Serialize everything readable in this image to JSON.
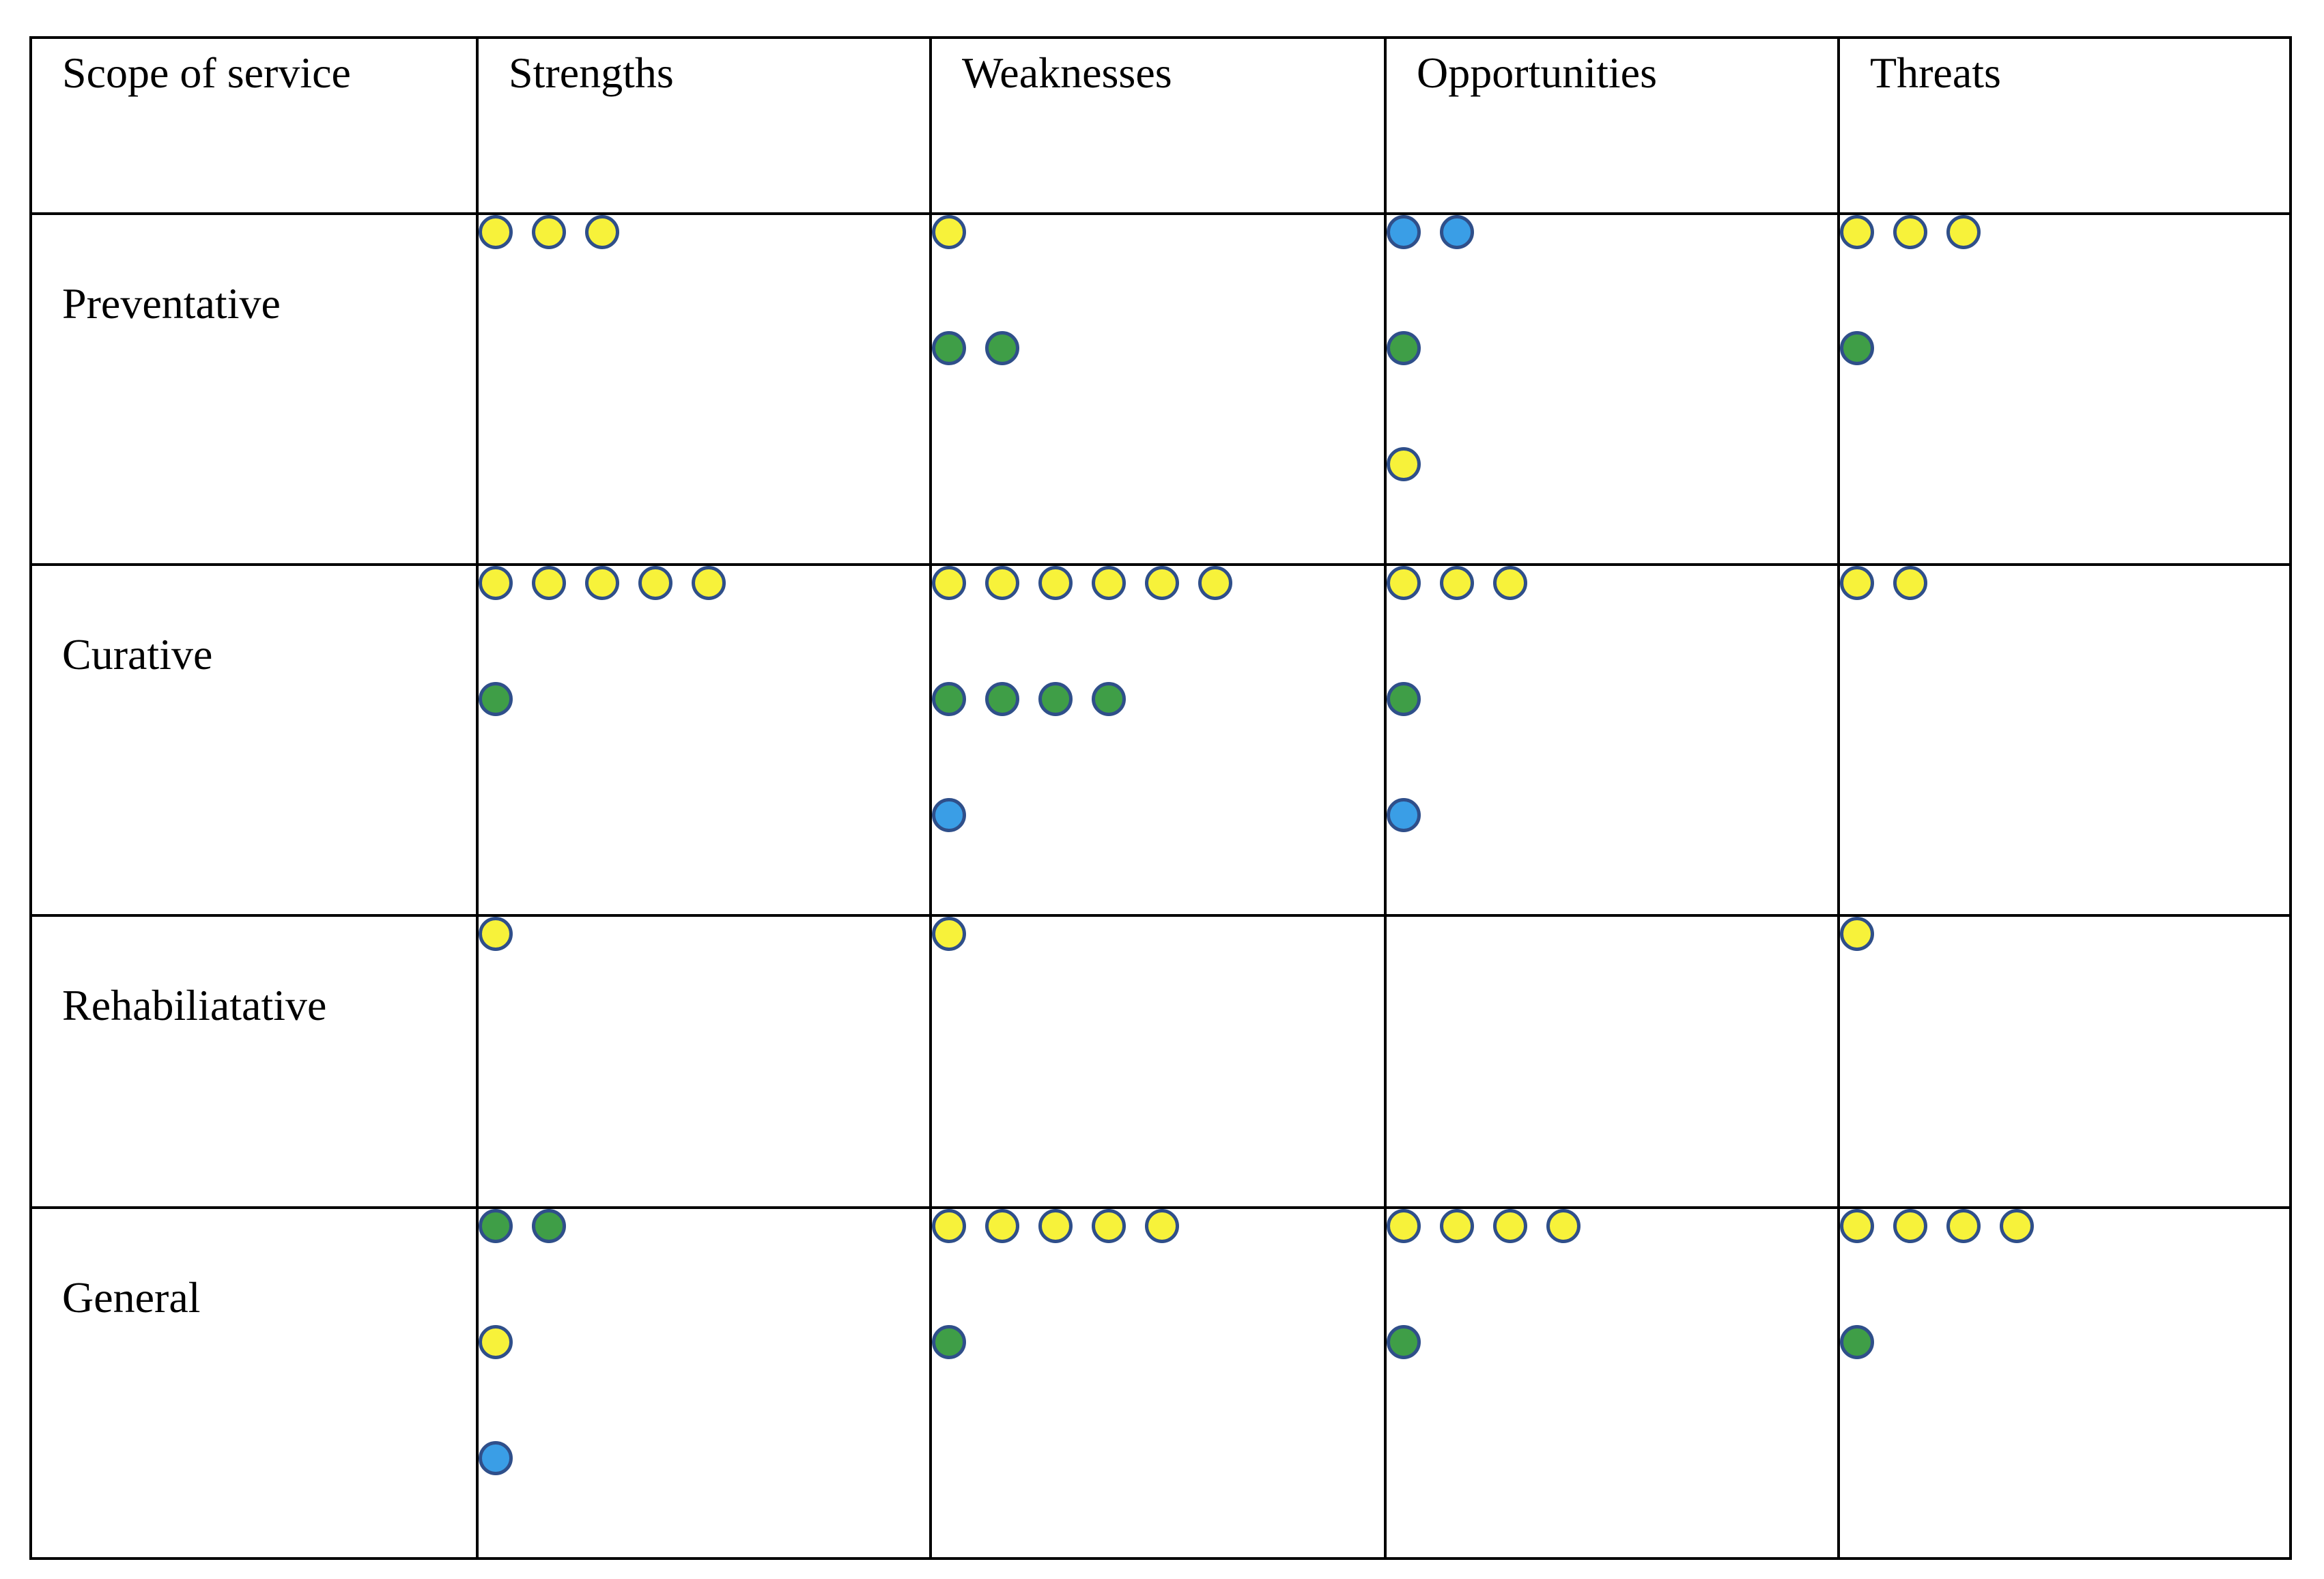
{
  "colors": {
    "yellow": "#f7f23a",
    "green": "#3f9e47",
    "blue": "#3a9ee6",
    "dot_border": "#2f4f8a"
  },
  "headers": [
    "Scope of service",
    "Strengths",
    "Weaknesses",
    "Opportunities",
    "Threats"
  ],
  "rows": [
    {
      "label": "Preventative",
      "cells": [
        [
          {
            "color": "yellow",
            "count": 3
          }
        ],
        [
          {
            "color": "yellow",
            "count": 1
          },
          {
            "color": "green",
            "count": 2
          }
        ],
        [
          {
            "color": "blue",
            "count": 2
          },
          {
            "color": "green",
            "count": 1
          },
          {
            "color": "yellow",
            "count": 1
          }
        ],
        [
          {
            "color": "yellow",
            "count": 3
          },
          {
            "color": "green",
            "count": 1
          }
        ]
      ]
    },
    {
      "label": "Curative",
      "cells": [
        [
          {
            "color": "yellow",
            "count": 5
          },
          {
            "color": "green",
            "count": 1
          }
        ],
        [
          {
            "color": "yellow",
            "count": 6
          },
          {
            "color": "green",
            "count": 4
          },
          {
            "color": "blue",
            "count": 1
          }
        ],
        [
          {
            "color": "yellow",
            "count": 3
          },
          {
            "color": "green",
            "count": 1
          },
          {
            "color": "blue",
            "count": 1
          }
        ],
        [
          {
            "color": "yellow",
            "count": 2
          }
        ]
      ]
    },
    {
      "label": "Rehabiliatative",
      "cells": [
        [
          {
            "color": "yellow",
            "count": 1
          }
        ],
        [
          {
            "color": "yellow",
            "count": 1
          }
        ],
        [],
        [
          {
            "color": "yellow",
            "count": 1
          }
        ]
      ]
    },
    {
      "label": "General",
      "cells": [
        [
          {
            "color": "green",
            "count": 2
          },
          {
            "color": "yellow",
            "count": 1
          },
          {
            "color": "blue",
            "count": 1
          }
        ],
        [
          {
            "color": "yellow",
            "count": 5
          },
          {
            "color": "green",
            "count": 1
          }
        ],
        [
          {
            "color": "yellow",
            "count": 4
          },
          {
            "color": "green",
            "count": 1
          }
        ],
        [
          {
            "color": "yellow",
            "count": 4
          },
          {
            "color": "green",
            "count": 1
          }
        ]
      ]
    }
  ]
}
